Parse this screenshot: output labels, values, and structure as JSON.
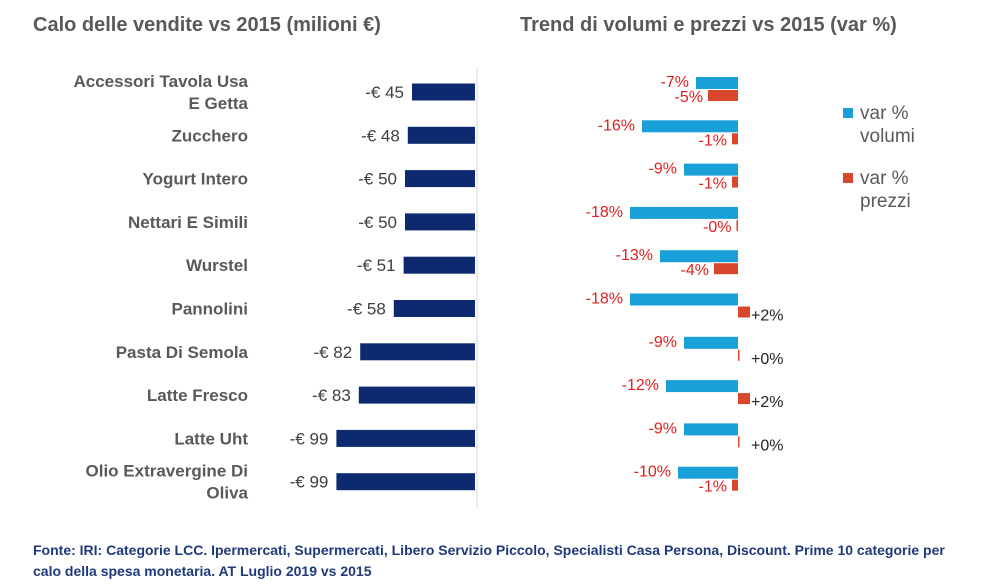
{
  "chart_data": [
    {
      "type": "bar",
      "orientation": "horizontal",
      "title": "Calo delle vendite vs 2015 (milioni €)",
      "categories": [
        "Accessori Tavola Usa E Getta",
        "Zucchero",
        "Yogurt Intero",
        "Nettari E Simili",
        "Wurstel",
        "Pannolini",
        "Pasta Di Semola",
        "Latte Fresco",
        "Latte Uht",
        "Olio Extravergine Di Oliva"
      ],
      "category_lines": [
        [
          "Accessori Tavola Usa",
          "E Getta"
        ],
        [
          "Zucchero"
        ],
        [
          "Yogurt Intero"
        ],
        [
          "Nettari E Simili"
        ],
        [
          "Wurstel"
        ],
        [
          "Pannolini"
        ],
        [
          "Pasta Di Semola"
        ],
        [
          "Latte Fresco"
        ],
        [
          "Latte Uht"
        ],
        [
          "Olio Extravergine Di",
          "Oliva"
        ]
      ],
      "values": [
        -45,
        -48,
        -50,
        -50,
        -51,
        -58,
        -82,
        -83,
        -99,
        -99
      ],
      "data_labels": [
        "-€ 45",
        "-€ 48",
        "-€ 50",
        "-€ 50",
        "-€ 51",
        "-€ 58",
        "-€ 82",
        "-€ 83",
        "-€ 99",
        "-€ 99"
      ],
      "xlim": [
        -100,
        0
      ],
      "color": "#0d2a6e",
      "grid": false
    },
    {
      "type": "bar",
      "orientation": "horizontal",
      "title": "Trend di volumi e prezzi vs 2015 (var %)",
      "categories": [
        "Accessori Tavola Usa E Getta",
        "Zucchero",
        "Yogurt Intero",
        "Nettari E Simili",
        "Wurstel",
        "Pannolini",
        "Pasta Di Semola",
        "Latte Fresco",
        "Latte Uht",
        "Olio Extravergine Di Oliva"
      ],
      "series": [
        {
          "name": "var % volumi",
          "color": "#1aa0d8",
          "values": [
            -7,
            -16,
            -9,
            -18,
            -13,
            -18,
            -9,
            -12,
            -9,
            -10
          ],
          "labels": [
            "-7%",
            "-16%",
            "-9%",
            "-18%",
            "-13%",
            "-18%",
            "-9%",
            "-12%",
            "-9%",
            "-10%"
          ]
        },
        {
          "name": "var % prezzi",
          "color": "#d8472b",
          "values": [
            -5,
            -1,
            -1,
            -0.2,
            -4,
            2,
            0.1,
            2,
            0.1,
            -1
          ],
          "labels": [
            "-5%",
            "-1%",
            "-1%",
            "-0%",
            "-4%",
            "+2%",
            "+0%",
            "+2%",
            "+0%",
            "-1%"
          ]
        }
      ],
      "legend_position": "right",
      "negative_label_color": "#e02020",
      "positive_label_color": "#222222",
      "grid": false
    }
  ],
  "legend": {
    "volumi_label": "var % volumi",
    "prezzi_label": "var % prezzi",
    "volumi_color": "#1aa0d8",
    "prezzi_color": "#d8472b"
  },
  "titles": {
    "left": "Calo delle vendite vs 2015 (milioni €)",
    "right": "Trend di volumi e prezzi vs 2015 (var %)"
  },
  "source_note": "Fonte: IRI:  Categorie LCC. Ipermercati, Supermercati, Libero Servizio Piccolo, Specialisti Casa Persona, Discount. Prime 10 categorie per calo della spesa monetaria. AT Luglio 2019 vs 2015"
}
